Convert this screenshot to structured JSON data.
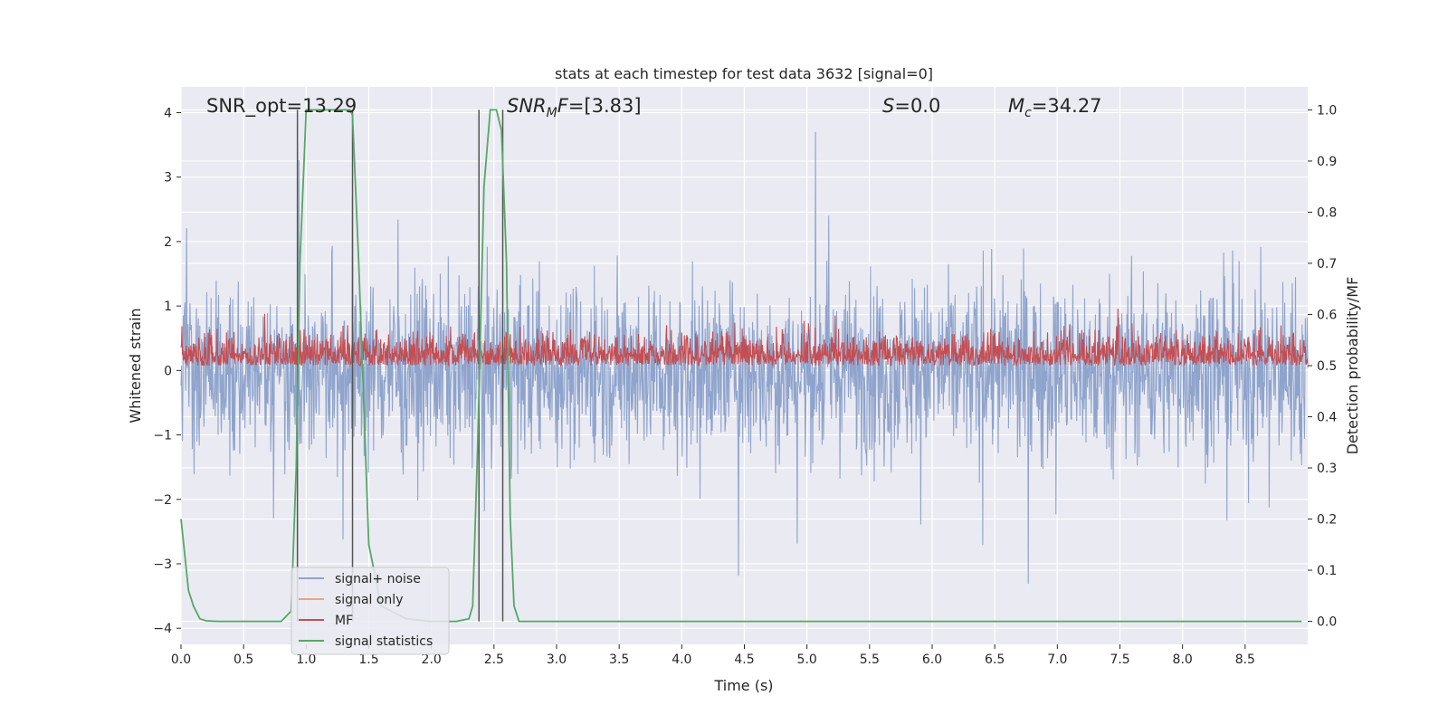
{
  "chart_data": {
    "type": "line",
    "title": "stats at each timestep for test data 3632 [signal=0]",
    "xlabel": "Time (s)",
    "ylabel": "Whitened strain",
    "ylabel_right": "Detection probability/MF",
    "xlim": [
      0.0,
      9.0
    ],
    "ylim": [
      -4.25,
      4.4
    ],
    "ylim_right": [
      -0.045,
      1.045
    ],
    "x_ticks": [
      0.0,
      0.5,
      1.0,
      1.5,
      2.0,
      2.5,
      3.0,
      3.5,
      4.0,
      4.5,
      5.0,
      5.5,
      6.0,
      6.5,
      7.0,
      7.5,
      8.0,
      8.5
    ],
    "x_tick_labels": [
      "0.0",
      "0.5",
      "1.0",
      "1.5",
      "2.0",
      "2.5",
      "3.0",
      "3.5",
      "4.0",
      "4.5",
      "5.0",
      "5.5",
      "6.0",
      "6.5",
      "7.0",
      "7.5",
      "8.0",
      "8.5"
    ],
    "y_ticks": [
      -4,
      -3,
      -2,
      -1,
      0,
      1,
      2,
      3,
      4
    ],
    "y_tick_labels": [
      "−4",
      "−3",
      "−2",
      "−1",
      "0",
      "1",
      "2",
      "3",
      "4"
    ],
    "y_right_ticks": [
      0.0,
      0.1,
      0.2,
      0.3,
      0.4,
      0.5,
      0.6,
      0.7,
      0.8,
      0.9,
      1.0
    ],
    "y_right_tick_labels": [
      "0.0",
      "0.1",
      "0.2",
      "0.3",
      "0.4",
      "0.5",
      "0.6",
      "0.7",
      "0.8",
      "0.9",
      "1.0"
    ],
    "annotations": {
      "snr_opt": "SNR_opt=13.29",
      "snr_mf": "=[3.83]",
      "snr_mf_main": "SNR",
      "snr_mf_sub": "M",
      "snr_mf_tail": "F",
      "s_label": "S",
      "s_value": "=0.0",
      "mc_label": "M",
      "mc_sub": "c",
      "mc_value": "=34.27"
    },
    "legend": {
      "location": "lower-left",
      "entries": [
        "signal+ noise",
        "signal only",
        "MF",
        "signal statistics"
      ]
    },
    "colors": {
      "noise": "#8fa4cc",
      "signal_only": "#e8a486",
      "mf": "#c44e52",
      "stat": "#55a868",
      "vline": "#555555",
      "axes_bg": "#eaeaf2",
      "grid": "#ffffff"
    },
    "series": [
      {
        "name": "signal+ noise",
        "description": "whitened strain noise, amplitude roughly -3.4 to 3.7, sampled over 0-9 s"
      },
      {
        "name": "signal only",
        "values": []
      },
      {
        "name": "MF",
        "axis": "right",
        "description": "matched filter output between 0.5 and about 0.62 over 0-9 s"
      },
      {
        "name": "signal statistics",
        "axis": "right",
        "x": [
          0.0,
          0.03,
          0.06,
          0.1,
          0.15,
          0.2,
          0.3,
          0.5,
          0.8,
          0.88,
          0.92,
          0.95,
          1.0,
          1.05,
          1.1,
          1.2,
          1.3,
          1.35,
          1.37,
          1.42,
          1.5,
          1.6,
          1.8,
          2.0,
          2.2,
          2.3,
          2.33,
          2.37,
          2.42,
          2.47,
          2.52,
          2.56,
          2.6,
          2.63,
          2.66,
          2.7,
          3.0,
          4.0,
          5.0,
          6.0,
          7.0,
          8.0,
          8.95
        ],
        "values": [
          0.2,
          0.13,
          0.06,
          0.03,
          0.005,
          0.001,
          0.0,
          0.0,
          0.0,
          0.02,
          0.3,
          0.7,
          1.0,
          1.0,
          1.0,
          1.0,
          1.0,
          1.0,
          0.99,
          0.7,
          0.15,
          0.03,
          0.005,
          0.0,
          0.0,
          0.005,
          0.03,
          0.35,
          0.85,
          1.0,
          1.0,
          0.96,
          0.7,
          0.2,
          0.03,
          0.0,
          0.0,
          0.0,
          0.0,
          0.0,
          0.0,
          0.0,
          0.0
        ]
      }
    ],
    "vertical_lines_x": [
      0.93,
      1.37,
      2.38,
      2.57
    ]
  }
}
